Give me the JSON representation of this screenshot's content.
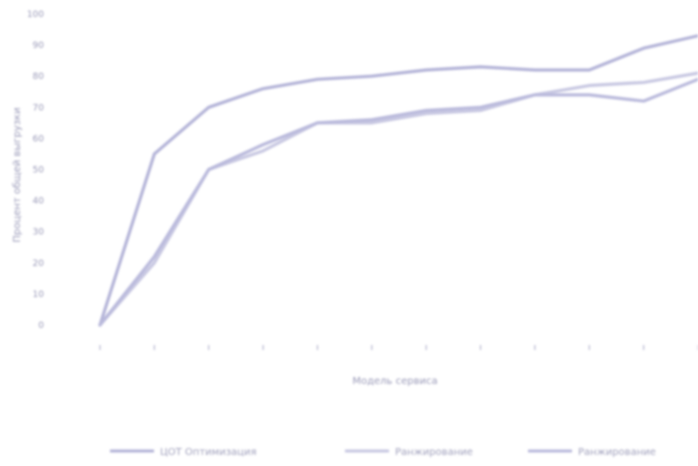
{
  "chart_data": {
    "type": "line",
    "title": "",
    "xlabel": "Модель сервиса",
    "ylabel": "Процент общей выгрузки",
    "ylim": [
      0,
      100
    ],
    "yticks": [
      0,
      10,
      20,
      30,
      40,
      50,
      60,
      70,
      80,
      90,
      100
    ],
    "x": [
      1,
      2,
      3,
      4,
      5,
      6,
      7,
      8,
      9,
      10,
      11,
      12
    ],
    "xlim": [
      1,
      12
    ],
    "grid": false,
    "legend_position": "bottom",
    "series": [
      {
        "name": "ЦОТ Оптимизация",
        "color": "#b4b4d8",
        "values": [
          0,
          55,
          70,
          76,
          79,
          80,
          82,
          83,
          82,
          82,
          89,
          93
        ]
      },
      {
        "name": "Ранжирование",
        "color": "#c8c8e2",
        "values": [
          0,
          20,
          50,
          56,
          65,
          65,
          68,
          69,
          74,
          77,
          78,
          81
        ]
      },
      {
        "name": "Ранжирование",
        "color": "#babadc",
        "values": [
          0,
          22,
          50,
          58,
          65,
          66,
          69,
          70,
          74,
          74,
          72,
          79
        ]
      }
    ]
  }
}
